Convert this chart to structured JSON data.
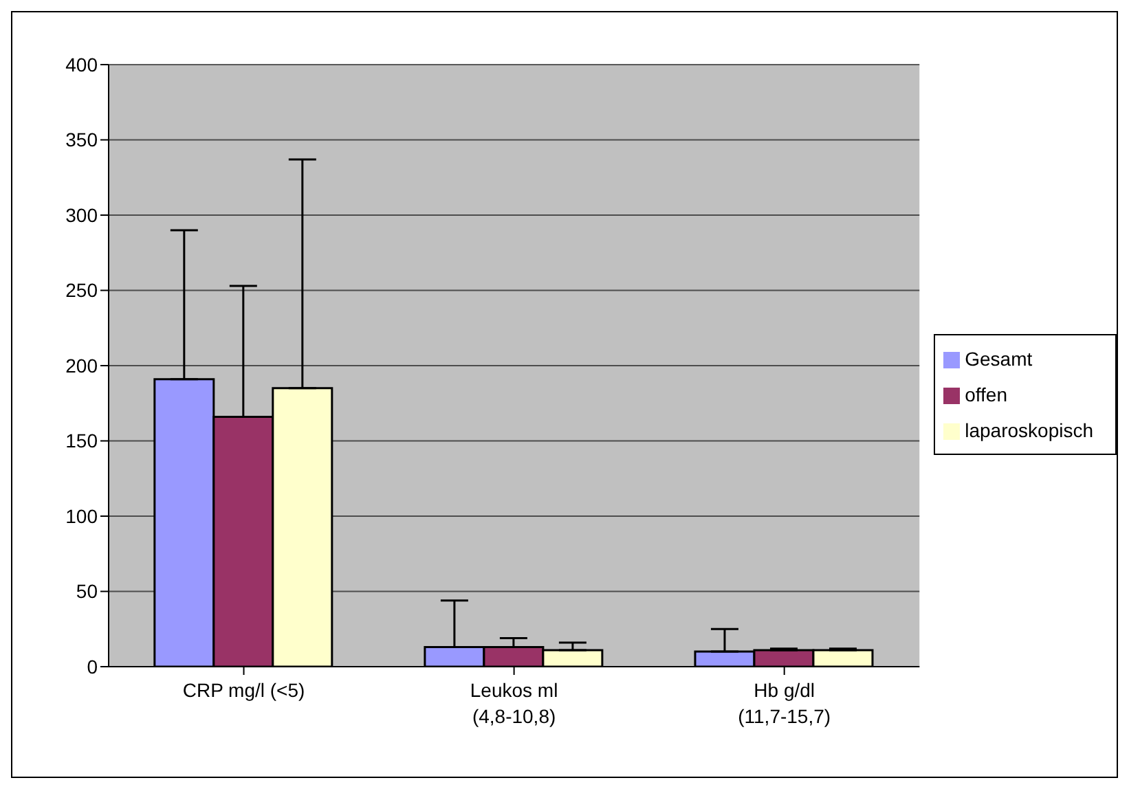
{
  "chart_data": {
    "type": "bar",
    "categories": [
      "CRP mg/l (<5)",
      "Leukos ml (4,8-10,8)",
      "Hb g/dl (11,7-15,7)"
    ],
    "series": [
      {
        "name": "Gesamt",
        "color": "#9999ff",
        "values": [
          191,
          13,
          10
        ],
        "errors": [
          [
            191,
            290
          ],
          [
            13,
            44
          ],
          [
            10,
            25
          ]
        ]
      },
      {
        "name": "offen",
        "color": "#993366",
        "values": [
          166,
          13,
          11
        ],
        "errors": [
          [
            166,
            253
          ],
          [
            13,
            19
          ],
          [
            11,
            12
          ]
        ]
      },
      {
        "name": "laparoskopisch",
        "color": "#ffffcc",
        "values": [
          185,
          11,
          11
        ],
        "errors": [
          [
            185,
            337
          ],
          [
            11,
            16
          ],
          [
            11,
            12
          ]
        ]
      }
    ],
    "ylim": [
      0,
      400
    ],
    "yticks": [
      0,
      50,
      100,
      150,
      200,
      250,
      300,
      350,
      400
    ],
    "grid": "y",
    "legend": "right"
  }
}
